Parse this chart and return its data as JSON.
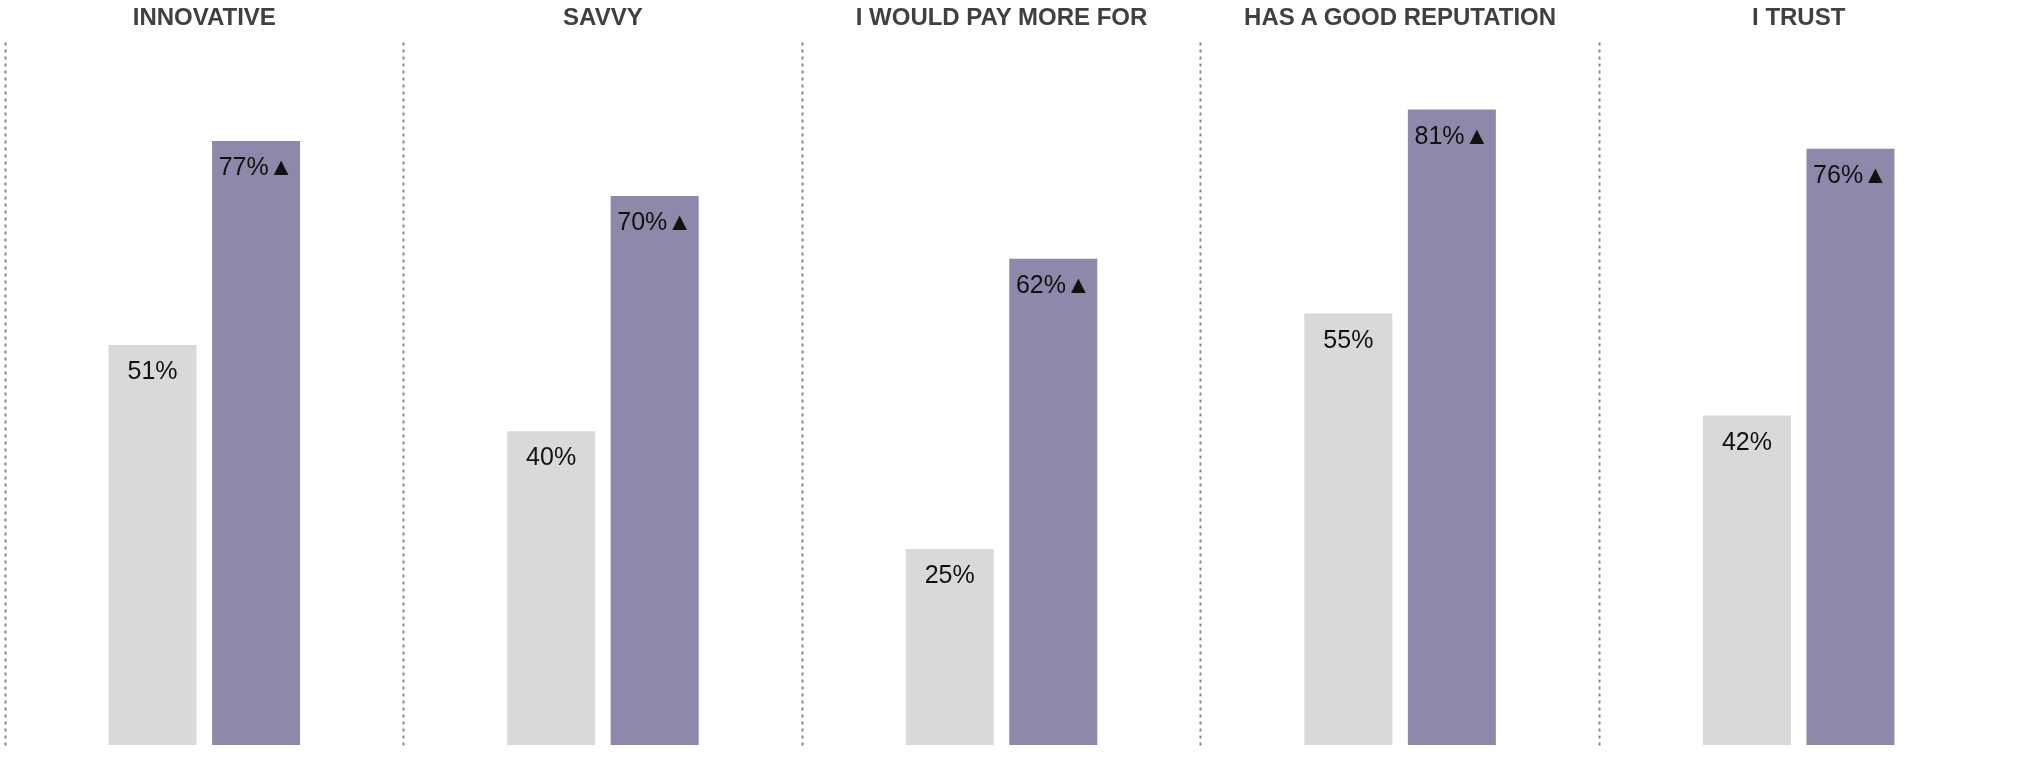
{
  "chart_data": {
    "type": "bar",
    "categories": [
      "INNOVATIVE",
      "SAVVY",
      "I WOULD PAY MORE FOR",
      "HAS A GOOD REPUTATION",
      "I TRUST"
    ],
    "series": [
      {
        "color": "#d9d9d9",
        "values": [
          51,
          40,
          25,
          55,
          42
        ],
        "value_labels": [
          "51%",
          "40%",
          "25%",
          "55%",
          "42%"
        ]
      },
      {
        "color": "#8e89ab",
        "values": [
          77,
          70,
          62,
          81,
          76
        ],
        "value_labels": [
          "77%▲",
          "70%▲",
          "62%▲",
          "81%▲",
          "76%▲"
        ]
      }
    ],
    "grid": "x",
    "tick_labels": "x"
  }
}
